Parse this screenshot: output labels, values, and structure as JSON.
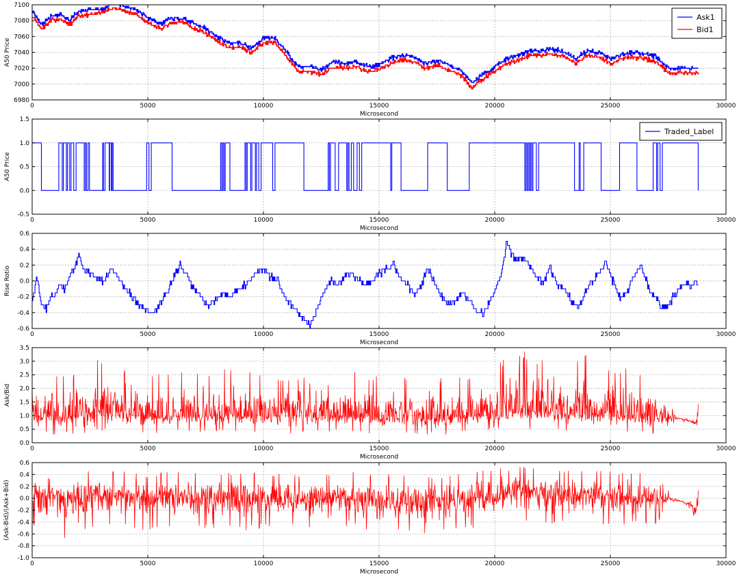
{
  "colors": {
    "blue": "#0000ff",
    "red": "#ff0000",
    "grid": "#b0b0b0",
    "axis": "#000000",
    "background": "#ffffff"
  },
  "chart_data": [
    {
      "type": "line",
      "xlabel": "Microsecond",
      "ylabel": "A50 Price",
      "xlim": [
        0,
        30000
      ],
      "ylim": [
        6980,
        7100
      ],
      "xticks": [
        "0",
        "5000",
        "10000",
        "15000",
        "20000",
        "25000",
        "30000"
      ],
      "yticks": [
        "6980",
        "7000",
        "7020",
        "7040",
        "7060",
        "7080",
        "7100"
      ],
      "grid": true,
      "legend": "top-right",
      "step": true,
      "series": [
        {
          "name": "Ask1",
          "color": "#0000ff",
          "x": [
            0,
            400,
            800,
            1200,
            1600,
            2000,
            2500,
            3000,
            3500,
            4000,
            4500,
            5000,
            5500,
            6000,
            6500,
            7000,
            7500,
            8000,
            8500,
            9000,
            9500,
            10000,
            10500,
            11000,
            11500,
            12000,
            12500,
            13000,
            13500,
            14000,
            14500,
            15000,
            15500,
            16000,
            16500,
            17000,
            17500,
            18000,
            18500,
            19000,
            19500,
            20000,
            20500,
            21000,
            21500,
            22000,
            22500,
            23000,
            23500,
            24000,
            24500,
            25000,
            25500,
            26000,
            26500,
            27000,
            27500,
            28000,
            28500,
            28800
          ],
          "values": [
            7092,
            7075,
            7085,
            7088,
            7080,
            7092,
            7094,
            7094,
            7102,
            7098,
            7094,
            7083,
            7076,
            7083,
            7083,
            7076,
            7070,
            7060,
            7052,
            7052,
            7046,
            7058,
            7058,
            7040,
            7022,
            7022,
            7018,
            7028,
            7026,
            7028,
            7022,
            7024,
            7032,
            7036,
            7034,
            7026,
            7030,
            7024,
            7018,
            7002,
            7012,
            7022,
            7032,
            7036,
            7042,
            7042,
            7044,
            7040,
            7032,
            7042,
            7040,
            7032,
            7038,
            7040,
            7038,
            7034,
            7020,
            7020,
            7020,
            7020
          ]
        },
        {
          "name": "Bid1",
          "color": "#ff0000",
          "x": [
            0,
            400,
            800,
            1200,
            1600,
            2000,
            2500,
            3000,
            3500,
            4000,
            4500,
            5000,
            5500,
            6000,
            6500,
            7000,
            7500,
            8000,
            8500,
            9000,
            9500,
            10000,
            10500,
            11000,
            11500,
            12000,
            12500,
            13000,
            13500,
            14000,
            14500,
            15000,
            15500,
            16000,
            16500,
            17000,
            17500,
            18000,
            18500,
            19000,
            19500,
            20000,
            20500,
            21000,
            21500,
            22000,
            22500,
            23000,
            23500,
            24000,
            24500,
            25000,
            25500,
            26000,
            26500,
            27000,
            27500,
            28000,
            28500,
            28800
          ],
          "values": [
            7086,
            7070,
            7080,
            7082,
            7075,
            7086,
            7088,
            7090,
            7096,
            7092,
            7088,
            7078,
            7070,
            7077,
            7078,
            7070,
            7064,
            7054,
            7046,
            7046,
            7040,
            7052,
            7052,
            7034,
            7016,
            7016,
            7012,
            7022,
            7020,
            7022,
            7016,
            7018,
            7026,
            7030,
            7028,
            7020,
            7024,
            7018,
            7012,
            6996,
            7006,
            7016,
            7026,
            7030,
            7036,
            7036,
            7038,
            7034,
            7026,
            7036,
            7034,
            7026,
            7032,
            7034,
            7032,
            7028,
            7014,
            7014,
            7014,
            7014
          ]
        }
      ]
    },
    {
      "type": "line",
      "xlabel": "Microsecond",
      "ylabel": "A50 Price",
      "xlim": [
        0,
        30000
      ],
      "ylim": [
        -0.5,
        1.5
      ],
      "xticks": [
        "0",
        "5000",
        "10000",
        "15000",
        "20000",
        "25000",
        "30000"
      ],
      "yticks": [
        "-0.5",
        "0.0",
        "0.5",
        "1.0",
        "1.5"
      ],
      "grid": true,
      "legend": "top-right",
      "step": true,
      "series": [
        {
          "name": "Traded_Label",
          "color": "#0000ff",
          "x": [
            0,
            400,
            1150,
            1300,
            1350,
            1480,
            1530,
            1620,
            1680,
            1800,
            1900,
            2250,
            2300,
            2350,
            2420,
            2480,
            3050,
            3080,
            3150,
            3330,
            3350,
            3420,
            3460,
            3500,
            4950,
            5050,
            5150,
            6050,
            8150,
            8200,
            8250,
            8300,
            8350,
            8550,
            9200,
            9250,
            9300,
            9450,
            9500,
            9650,
            9700,
            9800,
            9900,
            10400,
            10500,
            11750,
            12800,
            12850,
            12900,
            13100,
            13250,
            13600,
            13650,
            13700,
            13800,
            13900,
            14050,
            14150,
            14250,
            15500,
            15550,
            15950,
            17100,
            17950,
            18900,
            21300,
            21350,
            21400,
            21450,
            21500,
            21550,
            21600,
            21650,
            21800,
            21900,
            23450,
            23650,
            23700,
            23850,
            24600,
            25400,
            26150,
            26850,
            27000,
            27050,
            27150,
            27250,
            28800
          ],
          "values": [
            1,
            0,
            1,
            0,
            1,
            0,
            1,
            0,
            1,
            0,
            1,
            0,
            1,
            0,
            1,
            0,
            1,
            0,
            1,
            0,
            1,
            0,
            1,
            0,
            1,
            0,
            1,
            0,
            1,
            0,
            1,
            0,
            1,
            0,
            1,
            0,
            1,
            0,
            1,
            0,
            1,
            0,
            1,
            0,
            1,
            0,
            1,
            0,
            1,
            0,
            1,
            0,
            1,
            0,
            1,
            0,
            1,
            0,
            1,
            0,
            1,
            0,
            1,
            0,
            1,
            0,
            1,
            0,
            1,
            0,
            1,
            0,
            1,
            0,
            1,
            0,
            1,
            0,
            1,
            0,
            1,
            0,
            1,
            0,
            1,
            0,
            1,
            0
          ]
        }
      ]
    },
    {
      "type": "line",
      "xlabel": "Microsecond",
      "ylabel": "Rise Rotio",
      "xlim": [
        0,
        30000
      ],
      "ylim": [
        -0.6,
        0.6
      ],
      "xticks": [
        "0",
        "5000",
        "10000",
        "15000",
        "20000",
        "25000",
        "30000"
      ],
      "yticks": [
        "-0.6",
        "-0.4",
        "-0.2",
        "0.0",
        "0.2",
        "0.4",
        "0.6"
      ],
      "grid": true,
      "step": true,
      "series": [
        {
          "name": "",
          "color": "#0000ff",
          "x": [
            0,
            200,
            400,
            600,
            800,
            1000,
            1200,
            1400,
            1600,
            1800,
            2000,
            2200,
            2500,
            2800,
            3100,
            3400,
            3700,
            4000,
            4300,
            4600,
            4900,
            5200,
            5500,
            5800,
            6100,
            6400,
            6700,
            7000,
            7300,
            7600,
            7900,
            8200,
            8500,
            8800,
            9100,
            9400,
            9700,
            10000,
            10300,
            10600,
            10900,
            11200,
            11500,
            11800,
            12000,
            12300,
            12600,
            12900,
            13200,
            13500,
            13800,
            14100,
            14400,
            14700,
            15000,
            15300,
            15600,
            15900,
            16200,
            16500,
            16800,
            17100,
            17400,
            17700,
            18000,
            18300,
            18600,
            18900,
            19200,
            19500,
            19800,
            20100,
            20300,
            20500,
            20700,
            20900,
            21200,
            21500,
            21800,
            22100,
            22400,
            22700,
            23000,
            23300,
            23600,
            23900,
            24200,
            24500,
            24800,
            25100,
            25400,
            25700,
            26000,
            26300,
            26600,
            26900,
            27200,
            27500,
            27800,
            28100,
            28400,
            28700,
            28800
          ],
          "values": [
            -0.25,
            0.05,
            -0.3,
            -0.35,
            -0.2,
            -0.15,
            -0.05,
            -0.1,
            0.05,
            0.15,
            0.35,
            0.15,
            0.1,
            0.05,
            0.0,
            0.15,
            0.05,
            -0.1,
            -0.2,
            -0.3,
            -0.35,
            -0.42,
            -0.3,
            -0.15,
            0.05,
            0.2,
            0.05,
            -0.1,
            -0.2,
            -0.3,
            -0.25,
            -0.15,
            -0.2,
            -0.15,
            -0.05,
            0.0,
            0.1,
            0.15,
            0.05,
            0.0,
            -0.2,
            -0.3,
            -0.4,
            -0.5,
            -0.55,
            -0.35,
            -0.15,
            0.0,
            -0.05,
            0.05,
            0.1,
            0.0,
            -0.05,
            0.0,
            0.1,
            0.15,
            0.2,
            0.05,
            -0.05,
            -0.15,
            -0.05,
            0.15,
            -0.05,
            -0.2,
            -0.3,
            -0.25,
            -0.15,
            -0.25,
            -0.4,
            -0.42,
            -0.25,
            -0.05,
            0.1,
            0.5,
            0.35,
            0.25,
            0.3,
            0.2,
            0.05,
            0.0,
            0.15,
            -0.05,
            -0.1,
            -0.25,
            -0.35,
            -0.15,
            0.0,
            0.1,
            0.25,
            0.0,
            -0.2,
            -0.15,
            0.05,
            0.2,
            -0.05,
            -0.2,
            -0.35,
            -0.3,
            -0.15,
            -0.05,
            -0.05,
            0.0,
            -0.05
          ]
        }
      ]
    },
    {
      "type": "line",
      "xlabel": "Microsecond",
      "ylabel": "Ask/Bid",
      "xlim": [
        0,
        30000
      ],
      "ylim": [
        0.0,
        3.5
      ],
      "xticks": [
        "0",
        "5000",
        "10000",
        "15000",
        "20000",
        "25000",
        "30000"
      ],
      "yticks": [
        "0.0",
        "0.5",
        "1.0",
        "1.5",
        "2.0",
        "2.5",
        "3.0",
        "3.5"
      ],
      "grid": true,
      "series": [
        {
          "name": "",
          "color": "#ff0000",
          "x": [
            0,
            1000,
            2000,
            3000,
            4000,
            5000,
            6000,
            7000,
            8000,
            9000,
            10000,
            11000,
            12000,
            13000,
            14000,
            15000,
            16000,
            17000,
            18000,
            19000,
            20000,
            21000,
            22000,
            23000,
            24000,
            25000,
            26000,
            27000,
            27500,
            28000,
            28500,
            28700,
            28800
          ],
          "center": [
            1.1,
            1.0,
            1.1,
            1.2,
            1.1,
            1.0,
            1.0,
            1.0,
            1.0,
            1.0,
            1.0,
            1.0,
            1.0,
            1.0,
            1.0,
            0.9,
            0.9,
            0.9,
            0.9,
            1.0,
            1.1,
            1.2,
            1.2,
            1.1,
            1.1,
            1.1,
            1.0,
            1.0,
            0.9,
            0.9,
            0.8,
            0.7,
            1.2
          ],
          "high": [
            2.6,
            2.5,
            2.6,
            3.2,
            2.8,
            2.5,
            2.7,
            2.6,
            2.7,
            2.8,
            2.5,
            2.4,
            2.7,
            2.8,
            2.6,
            2.5,
            2.4,
            2.5,
            2.4,
            2.5,
            2.9,
            3.5,
            3.1,
            3.0,
            3.3,
            2.8,
            2.8,
            2.6,
            1.5,
            0.9,
            0.9,
            0.8,
            1.9
          ],
          "low": [
            0.3,
            0.3,
            0.3,
            0.4,
            0.4,
            0.3,
            0.4,
            0.4,
            0.4,
            0.4,
            0.4,
            0.3,
            0.4,
            0.4,
            0.4,
            0.3,
            0.3,
            0.3,
            0.3,
            0.4,
            0.5,
            0.5,
            0.5,
            0.4,
            0.4,
            0.4,
            0.4,
            0.3,
            0.6,
            0.8,
            0.7,
            0.3,
            0.6
          ]
        }
      ]
    },
    {
      "type": "line",
      "xlabel": "Microsecond",
      "ylabel": "(Ask-Bid)/(Ask+Bid)",
      "xlim": [
        0,
        30000
      ],
      "ylim": [
        -1.0,
        0.6
      ],
      "xticks": [
        "0",
        "5000",
        "10000",
        "15000",
        "20000",
        "25000",
        "30000"
      ],
      "yticks": [
        "-1.0",
        "-0.8",
        "-0.6",
        "-0.4",
        "-0.2",
        "0.0",
        "0.2",
        "0.4",
        "0.6"
      ],
      "grid": true,
      "series": [
        {
          "name": "",
          "color": "#ff0000",
          "x": [
            0,
            1000,
            2000,
            3000,
            4000,
            5000,
            6000,
            7000,
            8000,
            9000,
            10000,
            11000,
            12000,
            13000,
            14000,
            15000,
            16000,
            17000,
            18000,
            19000,
            20000,
            21000,
            22000,
            23000,
            24000,
            25000,
            26000,
            27000,
            27500,
            28000,
            28500,
            28700,
            28800
          ],
          "center": [
            0.05,
            0.0,
            0.05,
            0.05,
            0.05,
            0.0,
            0.0,
            0.0,
            0.0,
            0.0,
            0.0,
            0.0,
            0.0,
            0.0,
            0.0,
            -0.05,
            -0.05,
            -0.05,
            -0.05,
            0.0,
            0.05,
            0.1,
            0.1,
            0.05,
            0.05,
            0.05,
            0.0,
            0.0,
            -0.03,
            -0.05,
            -0.1,
            -0.25,
            0.2
          ],
          "high": [
            0.45,
            0.35,
            0.45,
            0.5,
            0.45,
            0.4,
            0.45,
            0.45,
            0.45,
            0.45,
            0.45,
            0.4,
            0.45,
            0.45,
            0.45,
            0.4,
            0.4,
            0.4,
            0.4,
            0.45,
            0.5,
            0.55,
            0.5,
            0.5,
            0.5,
            0.45,
            0.45,
            0.4,
            0.15,
            -0.03,
            -0.05,
            -0.1,
            0.3
          ],
          "low": [
            -0.45,
            -0.85,
            -0.6,
            -0.5,
            -0.5,
            -0.55,
            -0.5,
            -0.5,
            -0.5,
            -0.55,
            -0.5,
            -0.45,
            -0.5,
            -0.55,
            -0.5,
            -0.55,
            -0.55,
            -0.65,
            -0.55,
            -0.5,
            -0.45,
            -0.4,
            -0.4,
            -0.45,
            -0.45,
            -0.45,
            -0.45,
            -0.45,
            -0.05,
            -0.05,
            -0.2,
            -0.6,
            -0.2
          ]
        }
      ]
    }
  ]
}
